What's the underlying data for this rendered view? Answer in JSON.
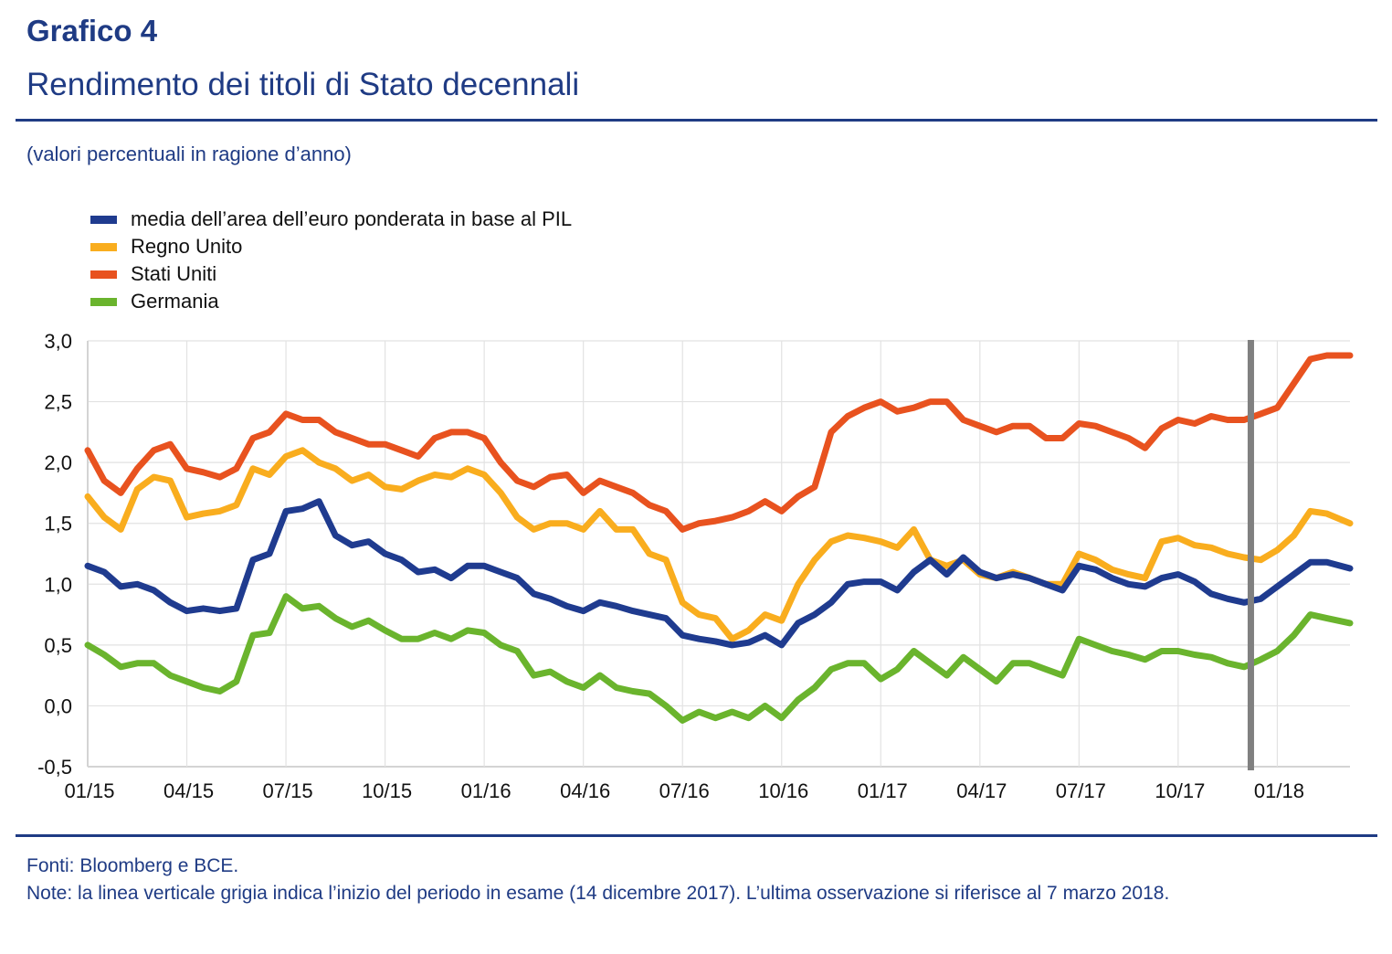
{
  "header": {
    "title": "Grafico 4",
    "subtitle": "Rendimento dei titoli di Stato decennali",
    "units": "(valori percentuali in ragione d’anno)"
  },
  "footer": {
    "sources": "Fonti: Bloomberg e BCE.",
    "note": "Note: la linea verticale grigia indica l’inizio del periodo in esame (14 dicembre 2017). L’ultima osservazione si riferisce al 7 marzo 2018."
  },
  "chart_data": {
    "type": "line",
    "title": "Rendimento dei titoli di Stato decennali",
    "subtitle": "(valori percentuali in ragione d’anno)",
    "xlabel": "",
    "ylabel": "",
    "x_unit": "months since January 2015",
    "xlim": [
      0,
      38.2
    ],
    "ylim": [
      -0.5,
      3.0
    ],
    "yticks": [
      -0.5,
      0.0,
      0.5,
      1.0,
      1.5,
      2.0,
      2.5,
      3.0
    ],
    "ytick_labels": [
      "-0,5",
      "0,0",
      "0,5",
      "1,0",
      "1,5",
      "2,0",
      "2,5",
      "3,0"
    ],
    "xticks": [
      0,
      3,
      6,
      9,
      12,
      15,
      18,
      21,
      24,
      27,
      30,
      33,
      36
    ],
    "xtick_labels": [
      "01/15",
      "04/15",
      "07/15",
      "10/15",
      "01/16",
      "04/16",
      "07/16",
      "10/16",
      "01/17",
      "04/17",
      "07/17",
      "10/17",
      "01/18"
    ],
    "grid": true,
    "legend_position": "top-left",
    "annotations": [
      {
        "type": "vertical-line",
        "x": 35.2,
        "label": "14 dicembre 2017",
        "color": "#808080"
      }
    ],
    "x": [
      0,
      0.5,
      1,
      1.5,
      2,
      2.5,
      3,
      3.5,
      4,
      4.5,
      5,
      5.5,
      6,
      6.5,
      7,
      7.5,
      8,
      8.5,
      9,
      9.5,
      10,
      10.5,
      11,
      11.5,
      12,
      12.5,
      13,
      13.5,
      14,
      14.5,
      15,
      15.5,
      16,
      16.5,
      17,
      17.5,
      18,
      18.5,
      19,
      19.5,
      20,
      20.5,
      21,
      21.5,
      22,
      22.5,
      23,
      23.5,
      24,
      24.5,
      25,
      25.5,
      26,
      26.5,
      27,
      27.5,
      28,
      28.5,
      29,
      29.5,
      30,
      30.5,
      31,
      31.5,
      32,
      32.5,
      33,
      33.5,
      34,
      34.5,
      35,
      35.5,
      36,
      36.5,
      37,
      37.5,
      38.2
    ],
    "series": [
      {
        "name": "media dell’area dell’euro ponderata in base al PIL",
        "color": "#1f3b8f",
        "values": [
          1.15,
          1.1,
          0.98,
          1.0,
          0.95,
          0.85,
          0.78,
          0.8,
          0.78,
          0.8,
          1.2,
          1.25,
          1.6,
          1.62,
          1.68,
          1.4,
          1.32,
          1.35,
          1.25,
          1.2,
          1.1,
          1.12,
          1.05,
          1.15,
          1.15,
          1.1,
          1.05,
          0.92,
          0.88,
          0.82,
          0.78,
          0.85,
          0.82,
          0.78,
          0.75,
          0.72,
          0.58,
          0.55,
          0.53,
          0.5,
          0.52,
          0.58,
          0.5,
          0.68,
          0.75,
          0.85,
          1.0,
          1.02,
          1.02,
          0.95,
          1.1,
          1.2,
          1.08,
          1.22,
          1.1,
          1.05,
          1.08,
          1.05,
          1.0,
          0.95,
          1.15,
          1.12,
          1.05,
          1.0,
          0.98,
          1.05,
          1.08,
          1.02,
          0.92,
          0.88,
          0.85,
          0.88,
          0.98,
          1.08,
          1.18,
          1.18,
          1.13
        ]
      },
      {
        "name": "Regno Unito",
        "color": "#f9ad1e",
        "values": [
          1.72,
          1.55,
          1.45,
          1.78,
          1.88,
          1.85,
          1.55,
          1.58,
          1.6,
          1.65,
          1.95,
          1.9,
          2.05,
          2.1,
          2.0,
          1.95,
          1.85,
          1.9,
          1.8,
          1.78,
          1.85,
          1.9,
          1.88,
          1.95,
          1.9,
          1.75,
          1.55,
          1.45,
          1.5,
          1.5,
          1.45,
          1.6,
          1.45,
          1.45,
          1.25,
          1.2,
          0.85,
          0.75,
          0.72,
          0.55,
          0.62,
          0.75,
          0.7,
          1.0,
          1.2,
          1.35,
          1.4,
          1.38,
          1.35,
          1.3,
          1.45,
          1.2,
          1.15,
          1.2,
          1.08,
          1.05,
          1.1,
          1.05,
          1.0,
          1.0,
          1.25,
          1.2,
          1.12,
          1.08,
          1.05,
          1.35,
          1.38,
          1.32,
          1.3,
          1.25,
          1.22,
          1.2,
          1.28,
          1.4,
          1.6,
          1.58,
          1.5
        ]
      },
      {
        "name": "Stati Uniti",
        "color": "#e8521f",
        "values": [
          2.1,
          1.85,
          1.75,
          1.95,
          2.1,
          2.15,
          1.95,
          1.92,
          1.88,
          1.95,
          2.2,
          2.25,
          2.4,
          2.35,
          2.35,
          2.25,
          2.2,
          2.15,
          2.15,
          2.1,
          2.05,
          2.2,
          2.25,
          2.25,
          2.2,
          2.0,
          1.85,
          1.8,
          1.88,
          1.9,
          1.75,
          1.85,
          1.8,
          1.75,
          1.65,
          1.6,
          1.45,
          1.5,
          1.52,
          1.55,
          1.6,
          1.68,
          1.6,
          1.72,
          1.8,
          2.25,
          2.38,
          2.45,
          2.5,
          2.42,
          2.45,
          2.5,
          2.5,
          2.35,
          2.3,
          2.25,
          2.3,
          2.3,
          2.2,
          2.2,
          2.32,
          2.3,
          2.25,
          2.2,
          2.12,
          2.28,
          2.35,
          2.32,
          2.38,
          2.35,
          2.35,
          2.4,
          2.45,
          2.65,
          2.85,
          2.88,
          2.88
        ]
      },
      {
        "name": "Germania",
        "color": "#6ab42d",
        "values": [
          0.5,
          0.42,
          0.32,
          0.35,
          0.35,
          0.25,
          0.2,
          0.15,
          0.12,
          0.2,
          0.58,
          0.6,
          0.9,
          0.8,
          0.82,
          0.72,
          0.65,
          0.7,
          0.62,
          0.55,
          0.55,
          0.6,
          0.55,
          0.62,
          0.6,
          0.5,
          0.45,
          0.25,
          0.28,
          0.2,
          0.15,
          0.25,
          0.15,
          0.12,
          0.1,
          0.0,
          -0.12,
          -0.05,
          -0.1,
          -0.05,
          -0.1,
          0.0,
          -0.1,
          0.05,
          0.15,
          0.3,
          0.35,
          0.35,
          0.22,
          0.3,
          0.45,
          0.35,
          0.25,
          0.4,
          0.3,
          0.2,
          0.35,
          0.35,
          0.3,
          0.25,
          0.55,
          0.5,
          0.45,
          0.42,
          0.38,
          0.45,
          0.45,
          0.42,
          0.4,
          0.35,
          0.32,
          0.38,
          0.45,
          0.58,
          0.75,
          0.72,
          0.68
        ]
      }
    ]
  }
}
